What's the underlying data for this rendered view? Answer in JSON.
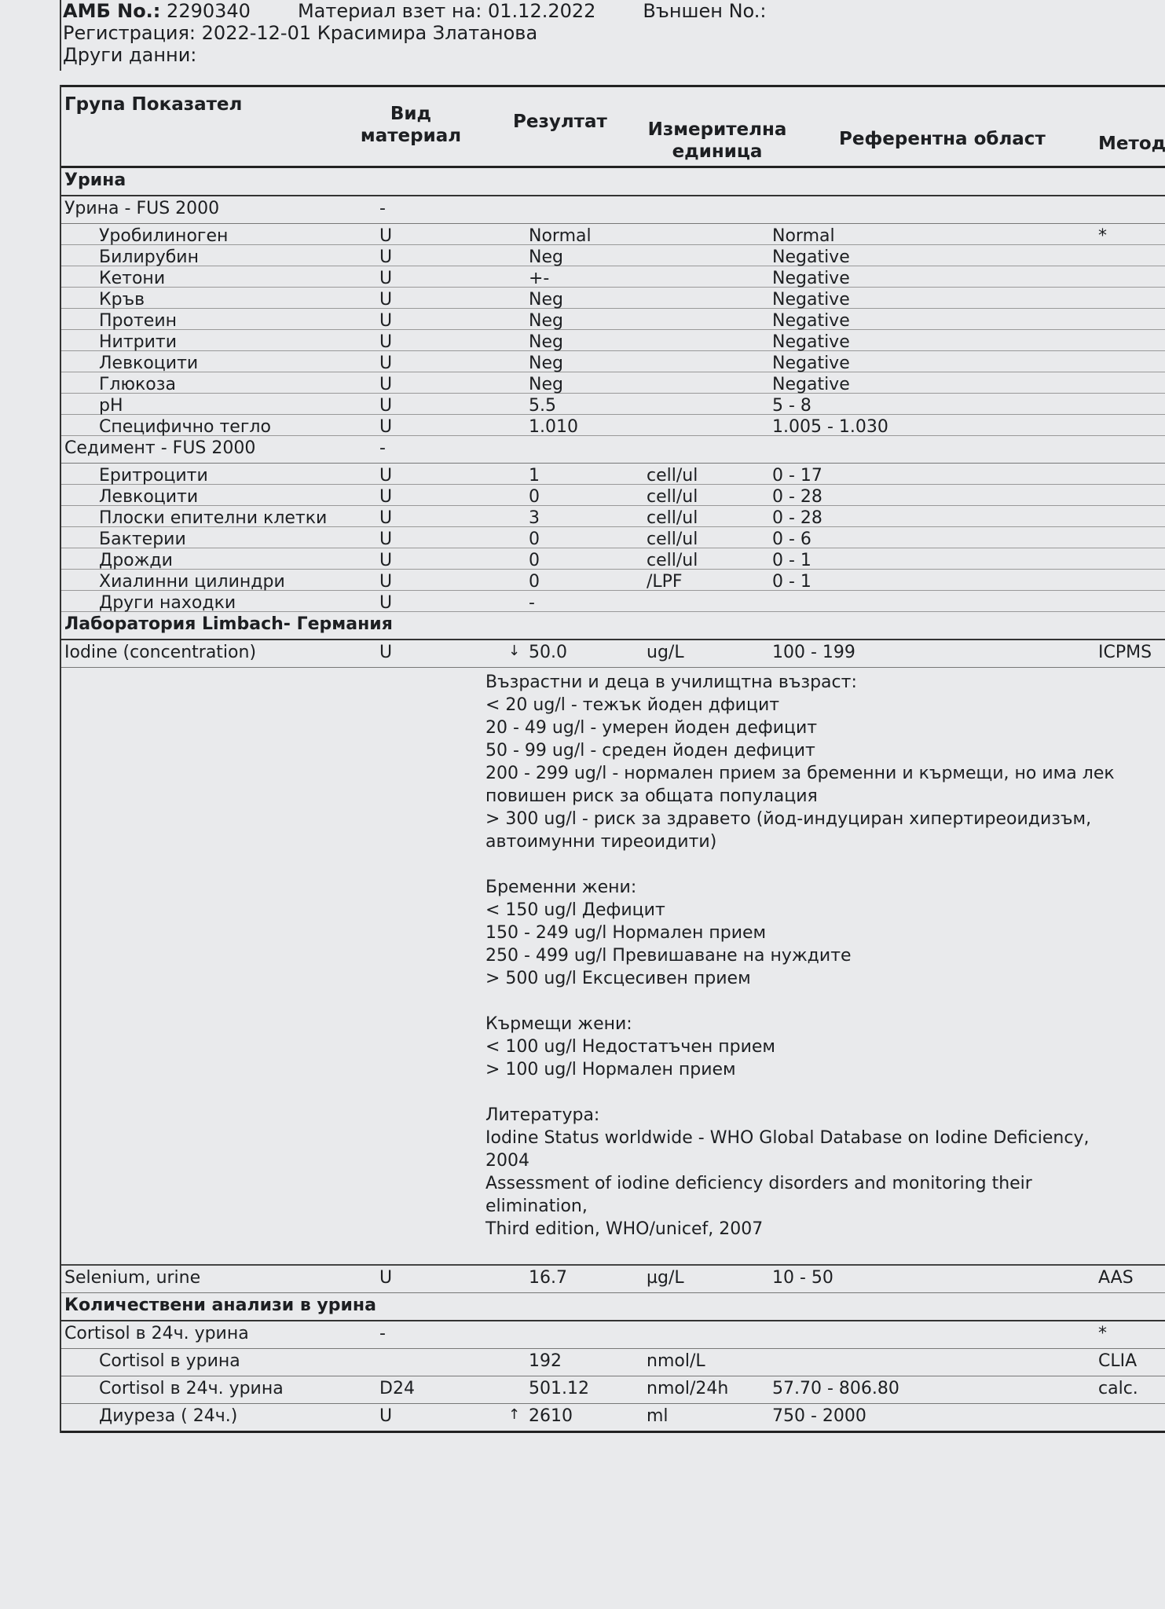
{
  "header": {
    "amb_label": "АМБ No.:",
    "amb_no": "2290340",
    "material_taken": "Материал взет на: 01.12.2022",
    "external_no": "Външен No.:",
    "registration": "Регистрация: 2022-12-01 Красимира Златанова",
    "other_data": "Други данни:"
  },
  "columns": [
    "Група Показател",
    "Вид материал",
    "Резултат",
    "Измерителна единица",
    "Референтна област",
    "Метод"
  ],
  "rows": [
    {
      "type": "group",
      "name": "Урина"
    },
    {
      "type": "sub",
      "name": "Урина - FUS 2000",
      "material": "-"
    },
    {
      "type": "item",
      "name": "Уробилиноген",
      "material": "U",
      "result": "Normal",
      "ref": "Normal",
      "method": "*"
    },
    {
      "type": "item",
      "name": "Билирубин",
      "material": "U",
      "result": "Neg",
      "ref": "Negative"
    },
    {
      "type": "item",
      "name": "Кетони",
      "material": "U",
      "result": "+-",
      "ref": "Negative"
    },
    {
      "type": "item",
      "name": "Кръв",
      "material": "U",
      "result": "Neg",
      "ref": "Negative"
    },
    {
      "type": "item",
      "name": "Протеин",
      "material": "U",
      "result": "Neg",
      "ref": "Negative"
    },
    {
      "type": "item",
      "name": "Нитрити",
      "material": "U",
      "result": "Neg",
      "ref": "Negative"
    },
    {
      "type": "item",
      "name": "Левкоцити",
      "material": "U",
      "result": "Neg",
      "ref": "Negative"
    },
    {
      "type": "item",
      "name": "Глюкоза",
      "material": "U",
      "result": "Neg",
      "ref": "Negative"
    },
    {
      "type": "item",
      "name": "pH",
      "material": "U",
      "result": "5.5",
      "ref": "5 - 8"
    },
    {
      "type": "item",
      "name": "Специфично тегло",
      "material": "U",
      "result": "1.010",
      "ref": "1.005 - 1.030"
    },
    {
      "type": "sub",
      "name": "Седимент - FUS 2000",
      "material": "-"
    },
    {
      "type": "item",
      "name": "Еритроцити",
      "material": "U",
      "result": "1",
      "unit": "cell/ul",
      "ref": "0 - 17"
    },
    {
      "type": "item",
      "name": "Левкоцити",
      "material": "U",
      "result": "0",
      "unit": "cell/ul",
      "ref": "0 - 28"
    },
    {
      "type": "item",
      "name": "Плоски епителни клетки",
      "material": "U",
      "result": "3",
      "unit": "cell/ul",
      "ref": "0 - 28"
    },
    {
      "type": "item",
      "name": "Бактерии",
      "material": "U",
      "result": "0",
      "unit": "cell/ul",
      "ref": "0 - 6"
    },
    {
      "type": "item",
      "name": "Дрожди",
      "material": "U",
      "result": "0",
      "unit": "cell/ul",
      "ref": "0 - 1"
    },
    {
      "type": "item",
      "name": "Хиалинни цилиндри",
      "material": "U",
      "result": "0",
      "unit": "/LPF",
      "ref": "0 - 1"
    },
    {
      "type": "item",
      "name": "Други находки",
      "material": "U",
      "result": "-"
    },
    {
      "type": "group",
      "name": "Лаборатория Limbach- Германия"
    },
    {
      "type": "sub",
      "name": "Iodine (concentration)",
      "material": "U",
      "flag": "↓",
      "result": "50.0",
      "unit": "ug/L",
      "ref": "100 - 199",
      "method": "ICPMS"
    }
  ],
  "iodine_notes": [
    "Възрастни и деца в училищтна възраст:",
    "< 20 ug/l - тежък йоден дфицит",
    "20 - 49 ug/l - умерен йоден дефицит",
    "50 - 99 ug/l - среден йоден дефицит",
    "200 - 299 ug/l - нормален прием за бременни и кърмещи, но има лек",
    "повишен риск за общата популация",
    "> 300 ug/l - риск за здравето (йод-индуциран хипертиреоидизъм,",
    "автоимунни тиреоидити)",
    "",
    "Бременни жени:",
    "< 150 ug/l Дефицит",
    "150 - 249 ug/l Нормален прием",
    "250 - 499 ug/l Превишаване на нуждите",
    "> 500 ug/l Ексцесивен прием",
    "",
    "Кърмещи жени:",
    "< 100 ug/l Недостатъчен прием",
    "> 100 ug/l Нормален прием",
    "",
    "Литература:",
    "Iodine Status worldwide - WHO Global Database on Iodine Deficiency,",
    "2004",
    "Assessment of iodine deficiency disorders and monitoring their",
    "elimination,",
    "Third edition, WHO/unicef, 2007"
  ],
  "rows2": [
    {
      "type": "sub",
      "name": "Selenium, urine",
      "material": "U",
      "result": "16.7",
      "unit": "µg/L",
      "ref": "10 - 50",
      "method": "AAS"
    },
    {
      "type": "group",
      "name": "Количествени анализи в урина"
    },
    {
      "type": "sub",
      "name": "Cortisol в 24ч. урина",
      "material": "-",
      "method": "*"
    },
    {
      "type": "item",
      "name": "Cortisol в урина",
      "result": "192",
      "unit": "nmol/L",
      "method": "CLIA"
    },
    {
      "type": "item",
      "name": "Cortisol в 24ч. урина",
      "material": "D24",
      "result": "501.12",
      "unit": "nmol/24h",
      "ref": "57.70 - 806.80",
      "method": "calc."
    },
    {
      "type": "item",
      "name": "Диуреза ( 24ч.)",
      "material": "U",
      "flag": "↑",
      "result": "2610",
      "unit": "ml",
      "ref": "750 - 2000"
    }
  ]
}
